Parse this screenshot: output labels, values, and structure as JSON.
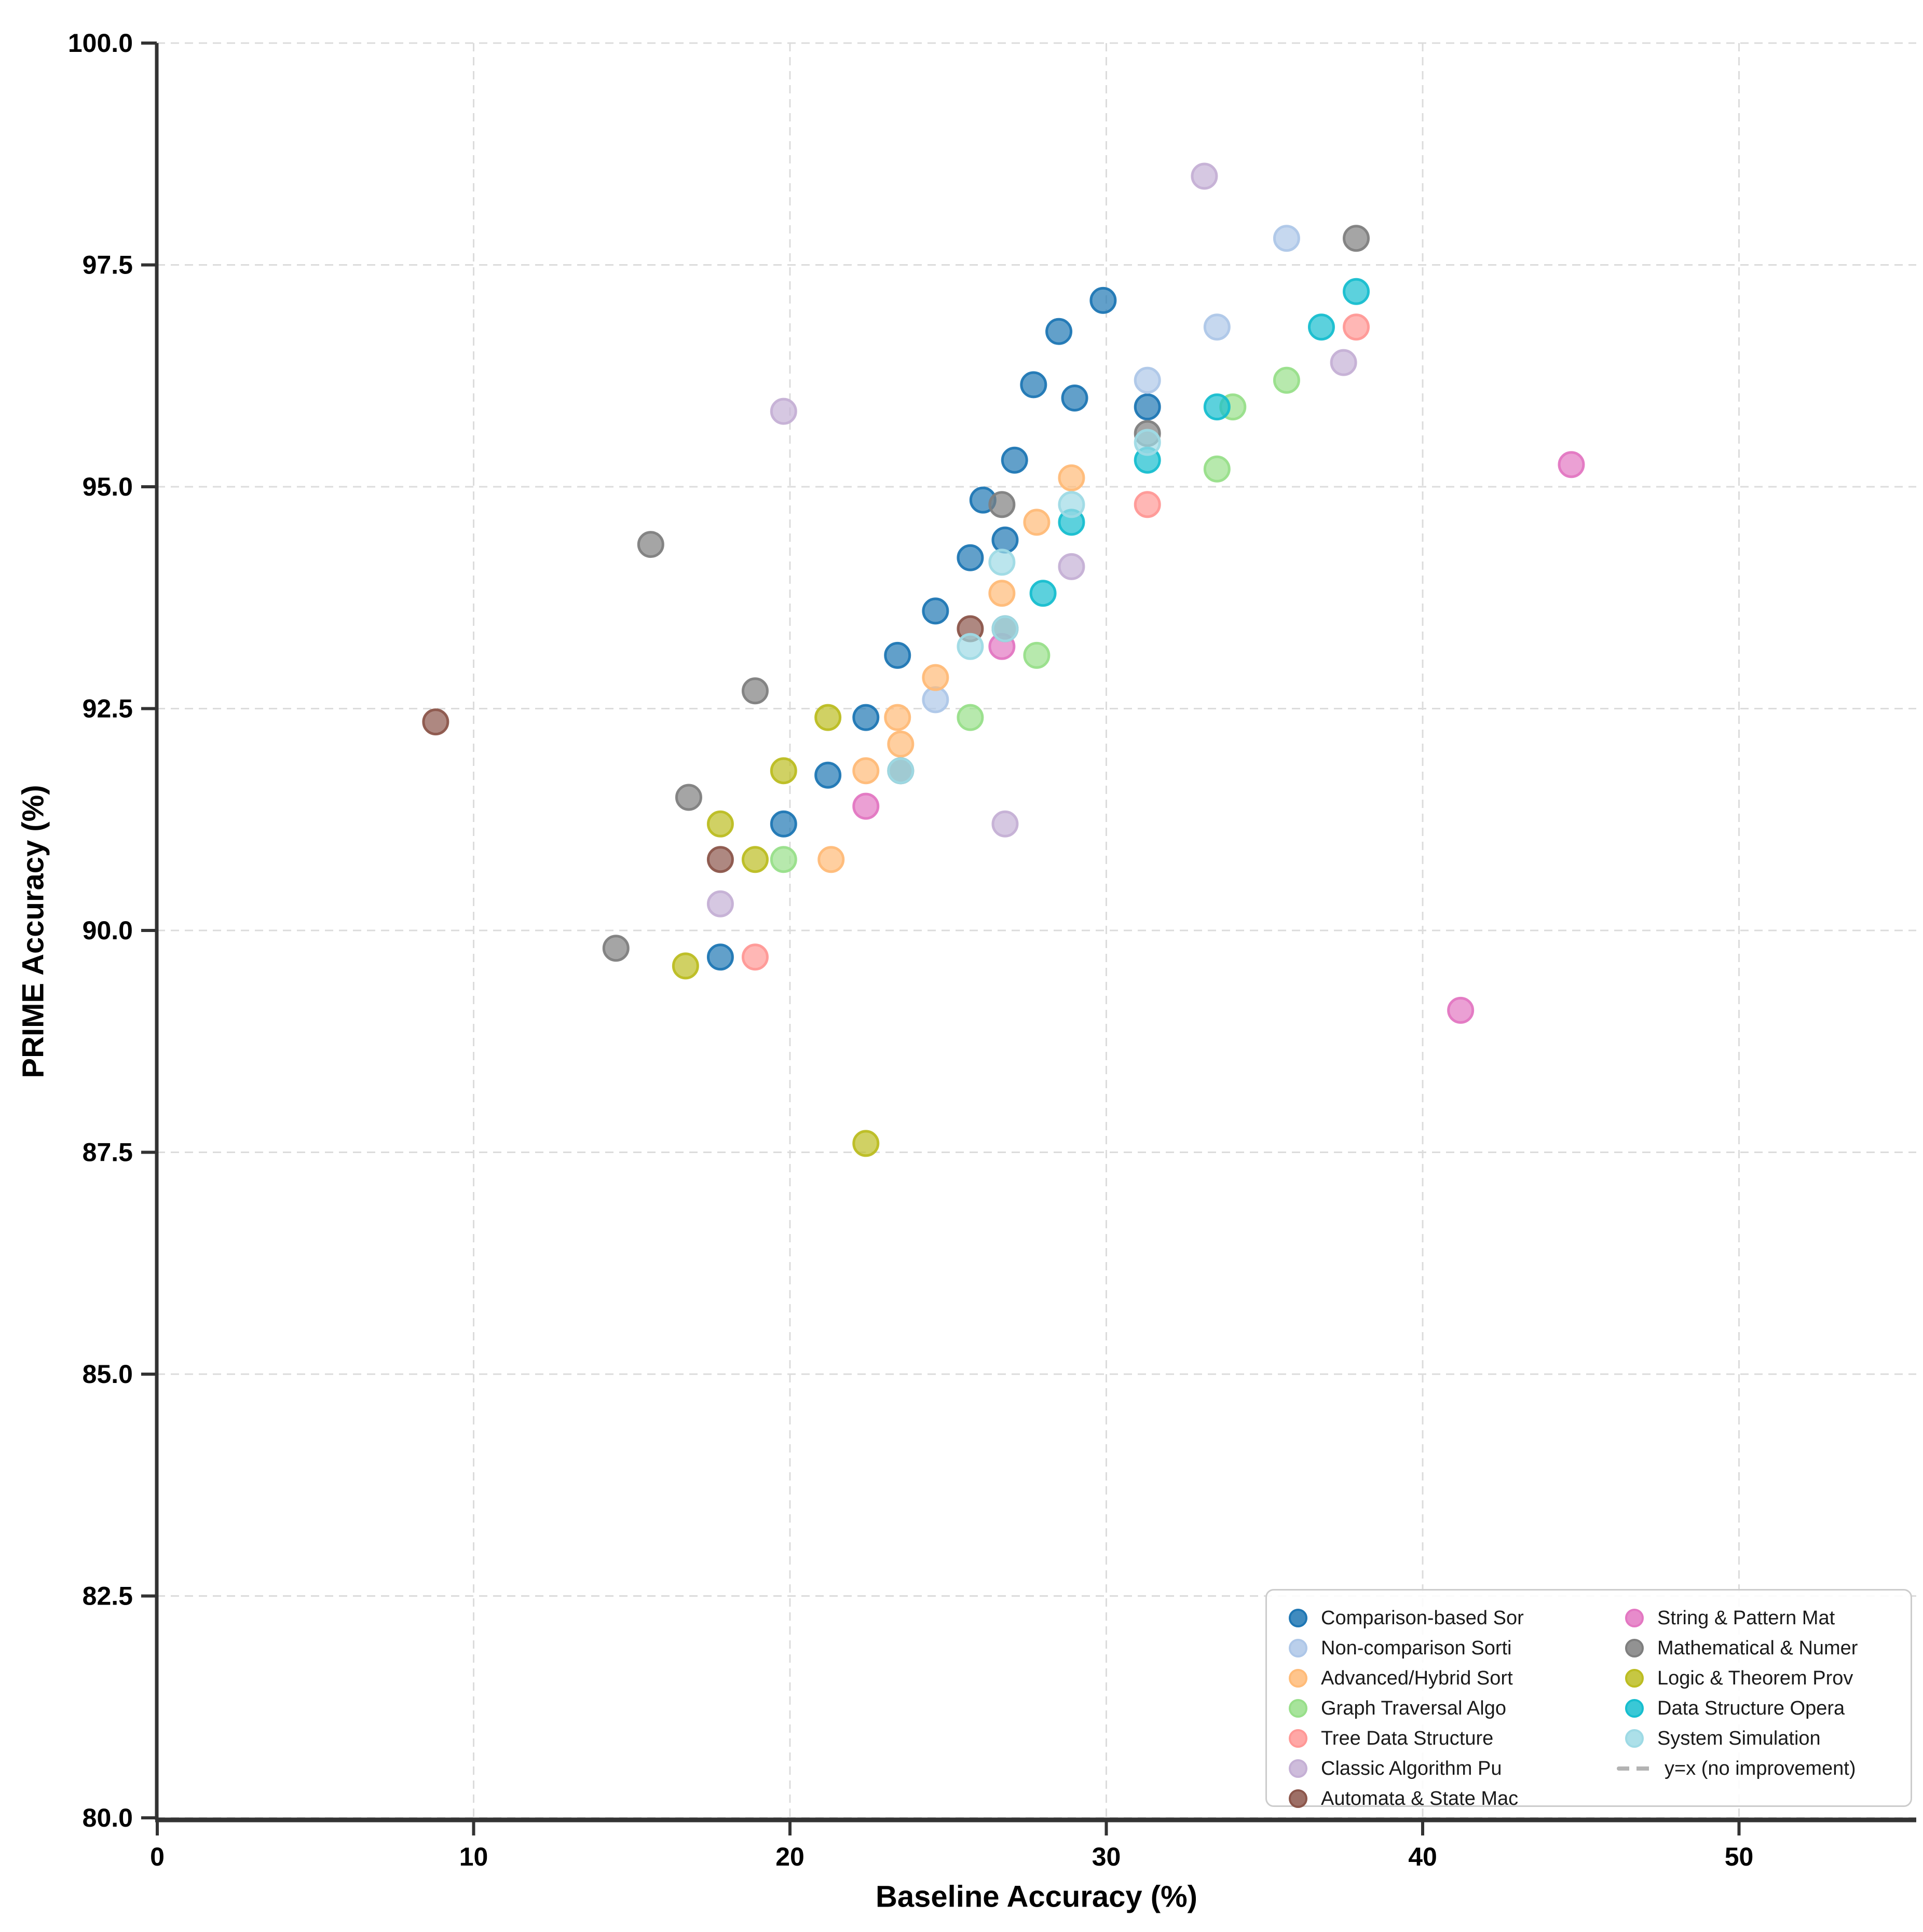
{
  "chart_data": {
    "type": "scatter",
    "title": "",
    "xlabel": "Baseline Accuracy (%)",
    "ylabel": "PRIME Accuracy (%)",
    "xlim": [
      -0.05,
      55.6
    ],
    "ylim": [
      79.4,
      100.0
    ],
    "x_ticks": [
      0,
      10,
      20,
      30,
      40,
      50
    ],
    "y_ticks": [
      80.0,
      82.5,
      85.0,
      87.5,
      90.0,
      92.5,
      95.0,
      97.5,
      100.0
    ],
    "grid": true,
    "grid_style": "dashed",
    "legend_position": "lower right",
    "marker_alpha": 0.7,
    "colors": {
      "grid": "#dcdcdc",
      "spine": "#333333",
      "tick_text": "#000000",
      "legend_border": "#cccccc",
      "reference_line": "#b3b3b3"
    },
    "reference_line": {
      "label": "y=x (no improvement)",
      "style": "dashed",
      "visible_in_plot": false
    },
    "series": [
      {
        "name": "Comparison-based Sor",
        "color": "#1f77b4",
        "points": [
          [
            17.8,
            89.7
          ],
          [
            19.8,
            91.2
          ],
          [
            21.2,
            91.75
          ],
          [
            22.4,
            92.4
          ],
          [
            23.4,
            93.1
          ],
          [
            24.6,
            93.6
          ],
          [
            25.7,
            94.2
          ],
          [
            26.1,
            94.85
          ],
          [
            26.8,
            94.4
          ],
          [
            27.1,
            95.3
          ],
          [
            27.7,
            96.15
          ],
          [
            28.5,
            96.75
          ],
          [
            29.0,
            96.0
          ],
          [
            29.9,
            97.1
          ],
          [
            31.3,
            95.9
          ]
        ]
      },
      {
        "name": "Non-comparison Sorti",
        "color": "#aec7e8",
        "points": [
          [
            24.6,
            92.6
          ],
          [
            31.3,
            96.2
          ],
          [
            33.5,
            96.8
          ],
          [
            35.7,
            97.8
          ]
        ]
      },
      {
        "name": "Advanced/Hybrid Sort",
        "color": "#ffbb78",
        "points": [
          [
            21.3,
            90.8
          ],
          [
            22.4,
            91.8
          ],
          [
            23.4,
            92.4
          ],
          [
            23.5,
            92.1
          ],
          [
            24.6,
            92.85
          ],
          [
            26.7,
            93.8
          ],
          [
            27.8,
            94.6
          ],
          [
            28.9,
            95.1
          ]
        ]
      },
      {
        "name": "Graph Traversal Algo",
        "color": "#98df8a",
        "points": [
          [
            19.8,
            90.8
          ],
          [
            25.7,
            92.4
          ],
          [
            27.8,
            93.1
          ],
          [
            33.5,
            95.2
          ],
          [
            34.0,
            95.9
          ],
          [
            35.7,
            96.2
          ]
        ]
      },
      {
        "name": "Tree Data Structure",
        "color": "#ff9896",
        "points": [
          [
            18.9,
            89.7
          ],
          [
            31.3,
            94.8
          ],
          [
            37.9,
            96.8
          ]
        ]
      },
      {
        "name": "Classic Algorithm Pu",
        "color": "#c5b0d5",
        "points": [
          [
            17.8,
            90.3
          ],
          [
            19.8,
            95.85
          ],
          [
            26.8,
            91.2
          ],
          [
            28.9,
            94.1
          ],
          [
            33.1,
            98.5
          ],
          [
            37.5,
            96.4
          ]
        ]
      },
      {
        "name": "Automata & State Mac",
        "color": "#8c564b",
        "points": [
          [
            8.8,
            92.35
          ],
          [
            17.8,
            90.8
          ],
          [
            25.7,
            93.4
          ]
        ]
      },
      {
        "name": "String & Pattern Mat",
        "color": "#e377c2",
        "points": [
          [
            22.4,
            91.4
          ],
          [
            26.7,
            93.2
          ],
          [
            41.2,
            89.1
          ],
          [
            44.7,
            95.25
          ]
        ]
      },
      {
        "name": "Mathematical & Numer",
        "color": "#7f7f7f",
        "points": [
          [
            14.5,
            89.8
          ],
          [
            15.6,
            94.35
          ],
          [
            16.8,
            91.5
          ],
          [
            18.9,
            92.7
          ],
          [
            23.5,
            91.8
          ],
          [
            26.7,
            94.8
          ],
          [
            26.8,
            93.4
          ],
          [
            31.3,
            95.6
          ],
          [
            37.9,
            97.8
          ]
        ]
      },
      {
        "name": "Logic & Theorem Prov",
        "color": "#bcbd22",
        "points": [
          [
            16.7,
            89.6
          ],
          [
            17.8,
            91.2
          ],
          [
            18.9,
            90.8
          ],
          [
            19.8,
            91.8
          ],
          [
            21.2,
            92.4
          ],
          [
            22.4,
            87.6
          ]
        ]
      },
      {
        "name": "Data Structure Opera",
        "color": "#17becf",
        "points": [
          [
            28.0,
            93.8
          ],
          [
            28.9,
            94.6
          ],
          [
            31.3,
            95.3
          ],
          [
            33.5,
            95.9
          ],
          [
            36.8,
            96.8
          ],
          [
            37.9,
            97.2
          ]
        ]
      },
      {
        "name": "System Simulation",
        "color": "#9edae5",
        "points": [
          [
            23.5,
            91.8
          ],
          [
            25.7,
            93.2
          ],
          [
            26.7,
            94.15
          ],
          [
            26.8,
            93.4
          ],
          [
            28.9,
            94.8
          ],
          [
            31.3,
            95.5
          ]
        ]
      }
    ]
  }
}
